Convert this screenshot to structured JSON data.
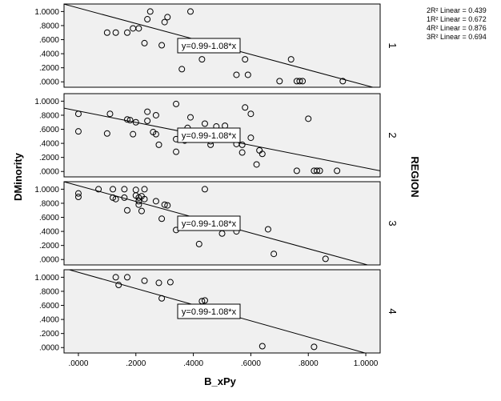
{
  "chart_data": {
    "type": "scatter",
    "xlabel": "B_xPy",
    "ylabel": "DMinority",
    "facet_label": "REGION",
    "xlim": [
      -0.05,
      1.05
    ],
    "ylim": [
      -0.02,
      1.05
    ],
    "x_ticks": [
      0,
      0.2,
      0.4,
      0.6,
      0.8,
      1.0
    ],
    "x_tick_labels": [
      ".0000",
      ".2000",
      ".4000",
      ".6000",
      ".8000",
      "1.0000"
    ],
    "y_ticks": [
      0,
      0.2,
      0.4,
      0.6,
      0.8,
      1.0
    ],
    "y_tick_labels": [
      ".0000",
      ".2000",
      ".4000",
      ".6000",
      ".8000",
      "1.0000"
    ],
    "equation": "y=0.99-1.08*x",
    "legend": [
      {
        "label": "2R² Linear = 0.439"
      },
      {
        "label": "1R² Linear = 0.672"
      },
      {
        "label": "4R² Linear = 0.876"
      },
      {
        "label": "3R² Linear = 0.694"
      }
    ],
    "panels": [
      {
        "region": "1",
        "fit": {
          "intercept": 1.05,
          "slope": -1.1
        },
        "points": [
          [
            0.25,
            1.0
          ],
          [
            0.39,
            1.0
          ],
          [
            0.31,
            0.92
          ],
          [
            0.24,
            0.89
          ],
          [
            0.3,
            0.85
          ],
          [
            0.19,
            0.76
          ],
          [
            0.21,
            0.76
          ],
          [
            0.1,
            0.7
          ],
          [
            0.13,
            0.7
          ],
          [
            0.17,
            0.7
          ],
          [
            0.23,
            0.55
          ],
          [
            0.29,
            0.52
          ],
          [
            0.43,
            0.32
          ],
          [
            0.58,
            0.32
          ],
          [
            0.74,
            0.32
          ],
          [
            0.36,
            0.18
          ],
          [
            0.55,
            0.1
          ],
          [
            0.59,
            0.1
          ],
          [
            0.7,
            0.01
          ],
          [
            0.76,
            0.01
          ],
          [
            0.77,
            0.01
          ],
          [
            0.78,
            0.01
          ],
          [
            0.92,
            0.01
          ]
        ]
      },
      {
        "region": "2",
        "fit": {
          "intercept": 0.86,
          "slope": -0.81
        },
        "points": [
          [
            0.34,
            0.96
          ],
          [
            0.58,
            0.91
          ],
          [
            0.0,
            0.82
          ],
          [
            0.11,
            0.82
          ],
          [
            0.24,
            0.85
          ],
          [
            0.27,
            0.8
          ],
          [
            0.39,
            0.77
          ],
          [
            0.6,
            0.82
          ],
          [
            0.17,
            0.74
          ],
          [
            0.18,
            0.73
          ],
          [
            0.2,
            0.7
          ],
          [
            0.24,
            0.72
          ],
          [
            0.44,
            0.68
          ],
          [
            0.48,
            0.64
          ],
          [
            0.51,
            0.65
          ],
          [
            0.38,
            0.62
          ],
          [
            0.0,
            0.57
          ],
          [
            0.1,
            0.54
          ],
          [
            0.26,
            0.56
          ],
          [
            0.19,
            0.53
          ],
          [
            0.27,
            0.53
          ],
          [
            0.41,
            0.53
          ],
          [
            0.6,
            0.48
          ],
          [
            0.46,
            0.43
          ],
          [
            0.34,
            0.46
          ],
          [
            0.37,
            0.44
          ],
          [
            0.28,
            0.38
          ],
          [
            0.46,
            0.38
          ],
          [
            0.55,
            0.39
          ],
          [
            0.57,
            0.38
          ],
          [
            0.63,
            0.3
          ],
          [
            0.34,
            0.28
          ],
          [
            0.57,
            0.27
          ],
          [
            0.64,
            0.25
          ],
          [
            0.62,
            0.1
          ],
          [
            0.8,
            0.75
          ],
          [
            0.76,
            0.01
          ],
          [
            0.82,
            0.01
          ],
          [
            0.83,
            0.01
          ],
          [
            0.84,
            0.01
          ],
          [
            0.9,
            0.01
          ]
        ]
      },
      {
        "region": "3",
        "fit": {
          "intercept": 1.05,
          "slope": -1.12
        },
        "points": [
          [
            0.07,
            1.0
          ],
          [
            0.12,
            1.0
          ],
          [
            0.16,
            1.0
          ],
          [
            0.2,
            0.99
          ],
          [
            0.23,
            1.0
          ],
          [
            0.44,
            1.0
          ],
          [
            0.0,
            0.94
          ],
          [
            0.0,
            0.89
          ],
          [
            0.12,
            0.88
          ],
          [
            0.13,
            0.86
          ],
          [
            0.16,
            0.88
          ],
          [
            0.2,
            0.91
          ],
          [
            0.21,
            0.88
          ],
          [
            0.22,
            0.9
          ],
          [
            0.21,
            0.83
          ],
          [
            0.23,
            0.86
          ],
          [
            0.27,
            0.83
          ],
          [
            0.21,
            0.78
          ],
          [
            0.3,
            0.78
          ],
          [
            0.31,
            0.77
          ],
          [
            0.17,
            0.7
          ],
          [
            0.22,
            0.69
          ],
          [
            0.29,
            0.58
          ],
          [
            0.34,
            0.42
          ],
          [
            0.42,
            0.22
          ],
          [
            0.5,
            0.37
          ],
          [
            0.55,
            0.4
          ],
          [
            0.66,
            0.43
          ],
          [
            0.68,
            0.08
          ],
          [
            0.86,
            0.01
          ]
        ]
      },
      {
        "region": "4",
        "fit": {
          "intercept": 1.07,
          "slope": -1.15
        },
        "points": [
          [
            0.13,
            1.0
          ],
          [
            0.17,
            1.0
          ],
          [
            0.14,
            0.89
          ],
          [
            0.23,
            0.95
          ],
          [
            0.28,
            0.92
          ],
          [
            0.32,
            0.93
          ],
          [
            0.29,
            0.7
          ],
          [
            0.43,
            0.66
          ],
          [
            0.44,
            0.67
          ],
          [
            0.64,
            0.02
          ],
          [
            0.82,
            0.01
          ]
        ]
      }
    ]
  }
}
